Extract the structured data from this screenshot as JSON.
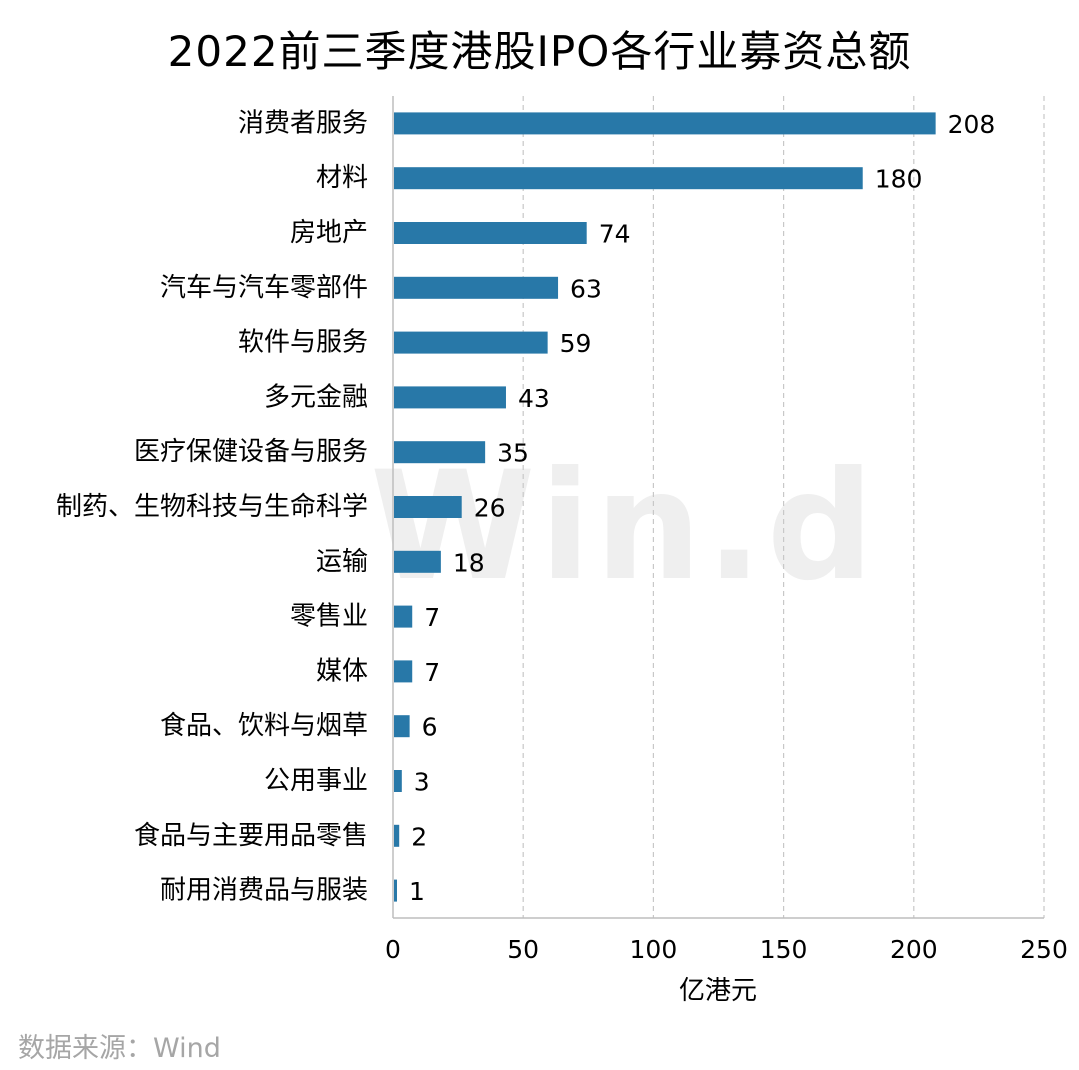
{
  "chart_data": {
    "type": "bar",
    "orientation": "horizontal",
    "title": "2022前三季度港股IPO各行业募资总额",
    "xlabel": "亿港元",
    "ylabel": "",
    "xlim": [
      0,
      250
    ],
    "xticks": [
      0,
      50,
      100,
      150,
      200,
      250
    ],
    "grid": "vertical dashed",
    "categories": [
      "消费者服务",
      "材料",
      "房地产",
      "汽车与汽车零部件",
      "软件与服务",
      "多元金融",
      "医疗保健设备与服务",
      "制药、生物科技与生命科学",
      "运输",
      "零售业",
      "媒体",
      "食品、饮料与烟草",
      "公用事业",
      "食品与主要用品零售",
      "耐用消费品与服装"
    ],
    "values": [
      208,
      180,
      74,
      63,
      59,
      43,
      35,
      26,
      18,
      7,
      7,
      6,
      3,
      2,
      1
    ],
    "bar_color": "#2878a8"
  },
  "watermark": "Win.d",
  "source": "数据来源：Wind"
}
